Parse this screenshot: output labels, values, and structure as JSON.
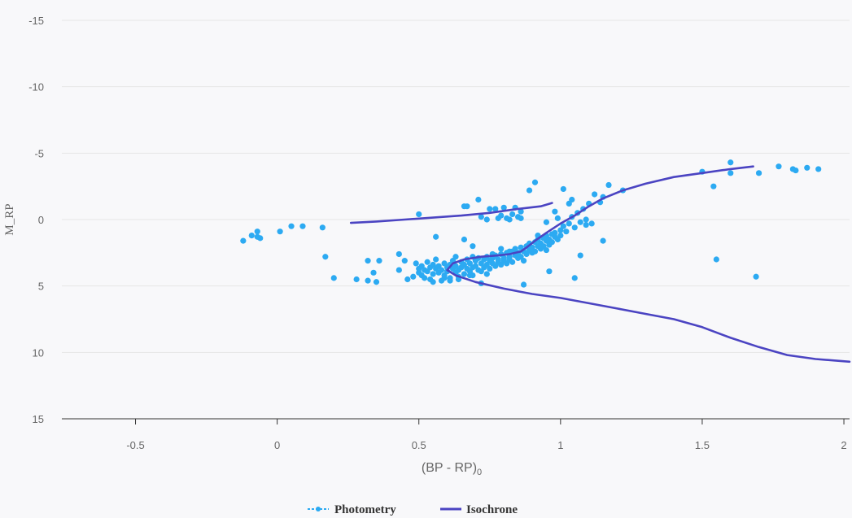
{
  "chart_data": {
    "type": "scatter",
    "title": "",
    "xlabel": "(BP - RP)",
    "xlabel_subscript": "0",
    "ylabel": "M_RP",
    "xlim": [
      -0.76,
      2.02
    ],
    "ylim": [
      -15,
      15
    ],
    "y_inverted": true,
    "grid": "horizontal",
    "x_ticks": [
      "-0.5",
      "0",
      "0.5",
      "1",
      "1.5",
      "2"
    ],
    "x_tick_values": [
      -0.5,
      0,
      0.5,
      1,
      1.5,
      2
    ],
    "y_ticks": [
      "-15",
      "-10",
      "-5",
      "0",
      "5",
      "10",
      "15"
    ],
    "y_tick_values": [
      -15,
      -10,
      -5,
      0,
      5,
      10,
      15
    ],
    "colors": {
      "photometry": "#2caaf2",
      "isochrone": "#4b44c2",
      "axis": "#333333",
      "grid": "#e6e6e6"
    },
    "legend": {
      "position": "bottom-center",
      "items": [
        "Photometry",
        "Isochrone"
      ]
    },
    "series": [
      {
        "name": "Photometry",
        "kind": "scatter",
        "points": [
          [
            -0.12,
            1.6
          ],
          [
            -0.09,
            1.2
          ],
          [
            -0.07,
            1.3
          ],
          [
            -0.07,
            0.9
          ],
          [
            -0.06,
            1.4
          ],
          [
            0.01,
            0.9
          ],
          [
            0.05,
            0.5
          ],
          [
            0.09,
            0.5
          ],
          [
            0.16,
            0.6
          ],
          [
            0.17,
            2.8
          ],
          [
            0.2,
            4.4
          ],
          [
            0.28,
            4.5
          ],
          [
            0.32,
            3.1
          ],
          [
            0.32,
            4.6
          ],
          [
            0.34,
            4.0
          ],
          [
            0.35,
            4.7
          ],
          [
            0.36,
            3.1
          ],
          [
            0.43,
            3.8
          ],
          [
            0.43,
            2.6
          ],
          [
            0.45,
            3.1
          ],
          [
            0.46,
            4.5
          ],
          [
            0.48,
            4.3
          ],
          [
            0.49,
            3.3
          ],
          [
            0.5,
            3.7
          ],
          [
            0.5,
            4.0
          ],
          [
            0.51,
            3.5
          ],
          [
            0.51,
            4.2
          ],
          [
            0.52,
            3.8
          ],
          [
            0.52,
            4.4
          ],
          [
            0.53,
            3.2
          ],
          [
            0.53,
            3.9
          ],
          [
            0.54,
            3.6
          ],
          [
            0.54,
            4.5
          ],
          [
            0.55,
            3.4
          ],
          [
            0.55,
            4.1
          ],
          [
            0.56,
            3.7
          ],
          [
            0.56,
            3.0
          ],
          [
            0.57,
            4.0
          ],
          [
            0.57,
            3.5
          ],
          [
            0.58,
            3.8
          ],
          [
            0.58,
            4.6
          ],
          [
            0.59,
            3.3
          ],
          [
            0.59,
            4.2
          ],
          [
            0.6,
            3.6
          ],
          [
            0.6,
            3.9
          ],
          [
            0.61,
            3.4
          ],
          [
            0.61,
            4.4
          ],
          [
            0.62,
            3.7
          ],
          [
            0.62,
            3.1
          ],
          [
            0.63,
            4.0
          ],
          [
            0.63,
            3.5
          ],
          [
            0.64,
            3.8
          ],
          [
            0.64,
            4.3
          ],
          [
            0.65,
            3.2
          ],
          [
            0.65,
            3.6
          ],
          [
            0.66,
            4.1
          ],
          [
            0.66,
            3.4
          ],
          [
            0.67,
            3.7
          ],
          [
            0.67,
            3.0
          ],
          [
            0.68,
            3.9
          ],
          [
            0.68,
            3.3
          ],
          [
            0.69,
            3.6
          ],
          [
            0.69,
            4.2
          ],
          [
            0.7,
            3.1
          ],
          [
            0.7,
            3.5
          ],
          [
            0.71,
            3.8
          ],
          [
            0.71,
            2.9
          ],
          [
            0.72,
            3.3
          ],
          [
            0.72,
            3.9
          ],
          [
            0.73,
            3.0
          ],
          [
            0.73,
            3.6
          ],
          [
            0.74,
            2.8
          ],
          [
            0.74,
            3.4
          ],
          [
            0.75,
            3.1
          ],
          [
            0.75,
            3.7
          ],
          [
            0.76,
            2.9
          ],
          [
            0.76,
            3.3
          ],
          [
            0.77,
            2.7
          ],
          [
            0.77,
            3.5
          ],
          [
            0.78,
            3.0
          ],
          [
            0.78,
            3.2
          ],
          [
            0.79,
            2.6
          ],
          [
            0.79,
            3.4
          ],
          [
            0.8,
            2.9
          ],
          [
            0.8,
            3.1
          ],
          [
            0.81,
            2.5
          ],
          [
            0.81,
            3.3
          ],
          [
            0.82,
            2.8
          ],
          [
            0.82,
            3.0
          ],
          [
            0.83,
            2.4
          ],
          [
            0.83,
            3.2
          ],
          [
            0.84,
            2.7
          ],
          [
            0.84,
            2.2
          ],
          [
            0.85,
            2.9
          ],
          [
            0.85,
            2.5
          ],
          [
            0.86,
            2.1
          ],
          [
            0.86,
            2.8
          ],
          [
            0.87,
            2.4
          ],
          [
            0.87,
            3.1
          ],
          [
            0.88,
            2.0
          ],
          [
            0.88,
            2.6
          ],
          [
            0.89,
            2.3
          ],
          [
            0.89,
            1.8
          ],
          [
            0.9,
            2.5
          ],
          [
            0.9,
            2.1
          ],
          [
            0.91,
            1.7
          ],
          [
            0.91,
            2.4
          ],
          [
            0.92,
            2.0
          ],
          [
            0.92,
            1.5
          ],
          [
            0.93,
            2.2
          ],
          [
            0.93,
            1.8
          ],
          [
            0.94,
            1.4
          ],
          [
            0.94,
            2.0
          ],
          [
            0.95,
            1.6
          ],
          [
            0.95,
            1.2
          ],
          [
            0.96,
            1.9
          ],
          [
            0.96,
            1.5
          ],
          [
            0.97,
            1.1
          ],
          [
            0.97,
            1.7
          ],
          [
            0.98,
            1.3
          ],
          [
            0.98,
            1.0
          ],
          [
            0.99,
            1.5
          ],
          [
            1.0,
            0.8
          ],
          [
            1.0,
            1.2
          ],
          [
            1.01,
            0.5
          ],
          [
            1.02,
            0.9
          ],
          [
            1.03,
            0.3
          ],
          [
            1.04,
            -0.2
          ],
          [
            1.05,
            0.6
          ],
          [
            1.06,
            -0.5
          ],
          [
            1.07,
            0.2
          ],
          [
            1.08,
            -0.8
          ],
          [
            1.09,
            0.0
          ],
          [
            1.1,
            -1.2
          ],
          [
            1.12,
            -1.9
          ],
          [
            1.04,
            -1.5
          ],
          [
            1.14,
            -1.3
          ],
          [
            1.15,
            -1.7
          ],
          [
            1.17,
            -2.6
          ],
          [
            1.22,
            -2.2
          ],
          [
            0.5,
            -0.4
          ],
          [
            0.56,
            1.3
          ],
          [
            0.61,
            4.6
          ],
          [
            0.66,
            1.5
          ],
          [
            0.66,
            -1.0
          ],
          [
            0.67,
            -1.0
          ],
          [
            0.71,
            -1.5
          ],
          [
            0.72,
            -0.2
          ],
          [
            0.74,
            0.0
          ],
          [
            0.75,
            -0.8
          ],
          [
            0.77,
            -0.8
          ],
          [
            0.78,
            -0.1
          ],
          [
            0.79,
            -0.3
          ],
          [
            0.8,
            -0.9
          ],
          [
            0.81,
            -0.1
          ],
          [
            0.82,
            0.0
          ],
          [
            0.83,
            -0.4
          ],
          [
            0.84,
            -0.9
          ],
          [
            0.85,
            -0.2
          ],
          [
            0.86,
            -0.1
          ],
          [
            0.86,
            -0.6
          ],
          [
            0.89,
            -2.2
          ],
          [
            0.91,
            -2.8
          ],
          [
            0.95,
            0.2
          ],
          [
            0.99,
            -0.1
          ],
          [
            1.01,
            -2.3
          ],
          [
            1.09,
            0.4
          ],
          [
            1.11,
            0.3
          ],
          [
            0.69,
            2.8
          ],
          [
            0.76,
            2.6
          ],
          [
            0.79,
            2.2
          ],
          [
            0.82,
            2.4
          ],
          [
            0.87,
            4.9
          ],
          [
            0.95,
            2.3
          ],
          [
            0.96,
            3.9
          ],
          [
            1.05,
            4.4
          ],
          [
            1.07,
            2.7
          ],
          [
            1.15,
            1.6
          ],
          [
            0.72,
            4.8
          ],
          [
            0.64,
            4.5
          ],
          [
            0.55,
            4.7
          ],
          [
            0.59,
            4.4
          ],
          [
            0.68,
            4.2
          ],
          [
            0.74,
            4.1
          ],
          [
            0.63,
            2.8
          ],
          [
            0.69,
            2.0
          ],
          [
            0.92,
            1.2
          ],
          [
            0.98,
            -0.6
          ],
          [
            1.03,
            -1.2
          ],
          [
            1.5,
            -3.6
          ],
          [
            1.54,
            -2.5
          ],
          [
            1.6,
            -4.3
          ],
          [
            1.6,
            -3.5
          ],
          [
            1.7,
            -3.5
          ],
          [
            1.77,
            -4.0
          ],
          [
            1.82,
            -3.8
          ],
          [
            1.83,
            -3.7
          ],
          [
            1.87,
            -3.9
          ],
          [
            1.91,
            -3.8
          ],
          [
            1.55,
            3.0
          ],
          [
            1.69,
            4.3
          ]
        ]
      },
      {
        "name": "Isochrone",
        "kind": "line",
        "points": [
          [
            0.26,
            0.25
          ],
          [
            0.35,
            0.15
          ],
          [
            0.45,
            0.0
          ],
          [
            0.55,
            -0.15
          ],
          [
            0.65,
            -0.3
          ],
          [
            0.75,
            -0.5
          ],
          [
            0.85,
            -0.8
          ],
          [
            0.93,
            -1.0
          ],
          [
            0.97,
            -1.25
          ],
          [
            null,
            null
          ],
          [
            1.68,
            -4.0
          ],
          [
            1.6,
            -3.8
          ],
          [
            1.5,
            -3.5
          ],
          [
            1.4,
            -3.2
          ],
          [
            1.3,
            -2.7
          ],
          [
            1.22,
            -2.2
          ],
          [
            1.15,
            -1.6
          ],
          [
            1.1,
            -1.0
          ],
          [
            1.05,
            -0.3
          ],
          [
            1.0,
            0.3
          ],
          [
            0.95,
            1.0
          ],
          [
            0.91,
            1.6
          ],
          [
            0.88,
            2.1
          ],
          [
            0.86,
            2.4
          ],
          [
            0.82,
            2.6
          ],
          [
            0.78,
            2.7
          ],
          [
            0.72,
            2.8
          ],
          [
            0.66,
            3.0
          ],
          [
            0.62,
            3.3
          ],
          [
            0.6,
            3.8
          ],
          [
            0.63,
            4.2
          ],
          [
            0.7,
            4.7
          ],
          [
            0.8,
            5.2
          ],
          [
            0.9,
            5.6
          ],
          [
            1.0,
            5.9
          ],
          [
            1.1,
            6.3
          ],
          [
            1.2,
            6.7
          ],
          [
            1.3,
            7.1
          ],
          [
            1.4,
            7.5
          ],
          [
            1.5,
            8.1
          ],
          [
            1.6,
            8.9
          ],
          [
            1.7,
            9.6
          ],
          [
            1.8,
            10.2
          ],
          [
            1.9,
            10.5
          ],
          [
            2.02,
            10.7
          ]
        ]
      }
    ]
  }
}
